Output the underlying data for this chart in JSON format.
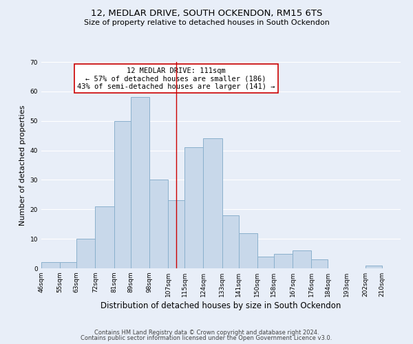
{
  "title": "12, MEDLAR DRIVE, SOUTH OCKENDON, RM15 6TS",
  "subtitle": "Size of property relative to detached houses in South Ockendon",
  "xlabel": "Distribution of detached houses by size in South Ockendon",
  "ylabel": "Number of detached properties",
  "bar_color": "#c8d8ea",
  "bar_edge_color": "#8ab0cc",
  "bg_color": "#e8eef8",
  "grid_color": "#ffffff",
  "bins": [
    46,
    55,
    63,
    72,
    81,
    89,
    98,
    107,
    115,
    124,
    133,
    141,
    150,
    158,
    167,
    176,
    184,
    193,
    202,
    210,
    219
  ],
  "counts": [
    2,
    2,
    10,
    21,
    50,
    58,
    30,
    23,
    41,
    44,
    18,
    12,
    4,
    5,
    6,
    3,
    0,
    0,
    1,
    0
  ],
  "property_size": 111,
  "vline_color": "#cc0000",
  "annotation_line1": "12 MEDLAR DRIVE: 111sqm",
  "annotation_line2": "← 57% of detached houses are smaller (186)",
  "annotation_line3": "43% of semi-detached houses are larger (141) →",
  "annotation_box_edge": "#cc0000",
  "annotation_box_face": "#ffffff",
  "ylim": [
    0,
    70
  ],
  "yticks": [
    0,
    10,
    20,
    30,
    40,
    50,
    60,
    70
  ],
  "footer_line1": "Contains HM Land Registry data © Crown copyright and database right 2024.",
  "footer_line2": "Contains public sector information licensed under the Open Government Licence v3.0.",
  "title_fontsize": 9.5,
  "subtitle_fontsize": 8,
  "xlabel_fontsize": 8.5,
  "ylabel_fontsize": 8,
  "tick_fontsize": 6.5,
  "footer_fontsize": 6,
  "annotation_fontsize": 7.5
}
